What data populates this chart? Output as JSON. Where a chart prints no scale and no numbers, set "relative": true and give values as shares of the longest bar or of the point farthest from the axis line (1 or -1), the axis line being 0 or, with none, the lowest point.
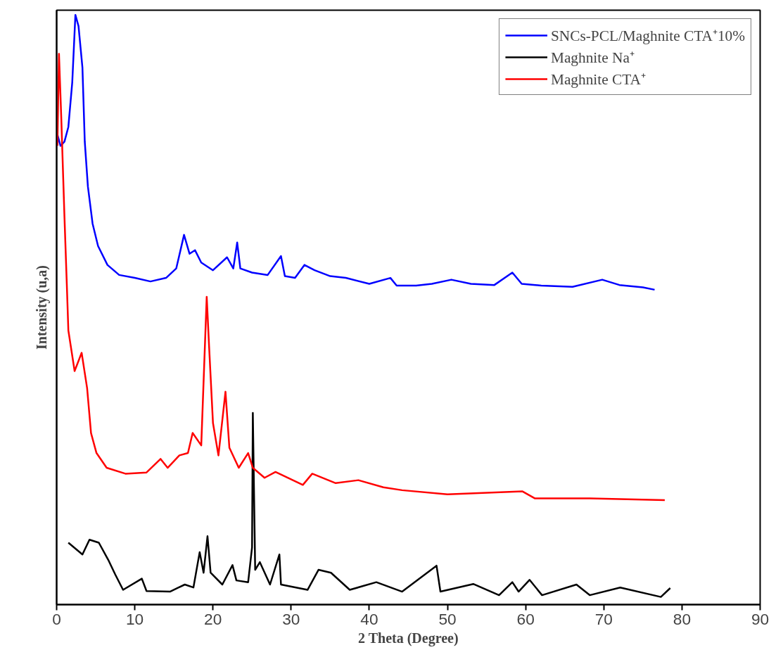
{
  "chart_data": {
    "type": "line",
    "relative": true,
    "xlabel": "2 Theta (Degree)",
    "ylabel": "Intensity (u,a)",
    "xlim": [
      0,
      90
    ],
    "xticks": [
      0,
      10,
      20,
      30,
      40,
      50,
      60,
      70,
      80,
      90
    ],
    "tick_labels": "x",
    "grid": false,
    "legend": "top right",
    "marker": "none",
    "line_style": "solid",
    "series": [
      {
        "name": "SNCs-PCL/Maghnite CTA⁺10%",
        "color": "#0000ff",
        "x": [
          0.1,
          0.5,
          1.0,
          1.5,
          2.0,
          2.4,
          2.8,
          3.3,
          3.6,
          4.0,
          4.6,
          5.3,
          6.5,
          8,
          10,
          12,
          14,
          15.3,
          16.3,
          17,
          17.7,
          18.5,
          20,
          21.8,
          22.6,
          23.1,
          23.5,
          25,
          27,
          28.7,
          29.2,
          30.5,
          31.7,
          33,
          35,
          37,
          40,
          42.7,
          43.5,
          46,
          48,
          50.5,
          53,
          56,
          58.3,
          59.5,
          62,
          66,
          69.8,
          72,
          75,
          76.5
        ],
        "values": [
          0.797,
          0.778,
          0.785,
          0.81,
          0.886,
          1.0,
          0.981,
          0.911,
          0.785,
          0.709,
          0.646,
          0.608,
          0.576,
          0.559,
          0.554,
          0.548,
          0.554,
          0.57,
          0.627,
          0.595,
          0.601,
          0.58,
          0.567,
          0.589,
          0.57,
          0.614,
          0.57,
          0.563,
          0.559,
          0.591,
          0.557,
          0.554,
          0.576,
          0.567,
          0.557,
          0.554,
          0.544,
          0.554,
          0.541,
          0.541,
          0.544,
          0.551,
          0.544,
          0.542,
          0.563,
          0.544,
          0.541,
          0.539,
          0.551,
          0.542,
          0.538,
          0.534
        ]
      },
      {
        "name": "Maghnite Na⁺",
        "color": "#000000",
        "x": [
          1.5,
          3.3,
          4.2,
          5.4,
          6.6,
          7.5,
          8.5,
          10.9,
          11.5,
          14.5,
          16.4,
          17.5,
          18.3,
          18.8,
          19.3,
          19.7,
          21.2,
          22.5,
          23.0,
          24.5,
          25.0,
          25.1,
          25.4,
          26.0,
          27.3,
          28.5,
          28.7,
          32.1,
          33.5,
          35.1,
          37.5,
          40.9,
          44.2,
          48.6,
          49.1,
          53.3,
          56.6,
          58.3,
          59.1,
          60.5,
          62.1,
          66.5,
          68.2,
          72.1,
          77.3,
          78.5
        ],
        "values": [
          0.105,
          0.085,
          0.11,
          0.105,
          0.076,
          0.051,
          0.025,
          0.044,
          0.023,
          0.022,
          0.034,
          0.029,
          0.089,
          0.054,
          0.116,
          0.054,
          0.034,
          0.067,
          0.041,
          0.038,
          0.097,
          0.325,
          0.059,
          0.072,
          0.034,
          0.085,
          0.034,
          0.025,
          0.059,
          0.054,
          0.025,
          0.038,
          0.022,
          0.066,
          0.022,
          0.035,
          0.016,
          0.038,
          0.022,
          0.042,
          0.016,
          0.034,
          0.016,
          0.029,
          0.013,
          0.028
        ]
      },
      {
        "name": "Maghnite CTA⁺",
        "color": "#ff0000",
        "x": [
          0.1,
          0.3,
          0.6,
          1.0,
          1.3,
          1.5,
          2.3,
          3.2,
          3.9,
          4.4,
          5.1,
          6.4,
          8.8,
          11.5,
          13.3,
          14.2,
          15.7,
          16.8,
          17.4,
          18.5,
          19.2,
          19.5,
          20.0,
          20.7,
          21.6,
          22.1,
          23.3,
          24.5,
          25.1,
          26.6,
          28.0,
          31.5,
          32.7,
          35.7,
          38.6,
          41.8,
          44.2,
          50,
          59.6,
          61.2,
          68.2,
          77.8
        ],
        "values": [
          0.778,
          0.934,
          0.823,
          0.658,
          0.544,
          0.465,
          0.396,
          0.427,
          0.367,
          0.291,
          0.257,
          0.232,
          0.222,
          0.224,
          0.247,
          0.232,
          0.253,
          0.257,
          0.291,
          0.27,
          0.522,
          0.439,
          0.308,
          0.253,
          0.361,
          0.266,
          0.232,
          0.257,
          0.232,
          0.215,
          0.225,
          0.203,
          0.222,
          0.206,
          0.211,
          0.199,
          0.194,
          0.187,
          0.192,
          0.18,
          0.18,
          0.177
        ]
      }
    ]
  }
}
